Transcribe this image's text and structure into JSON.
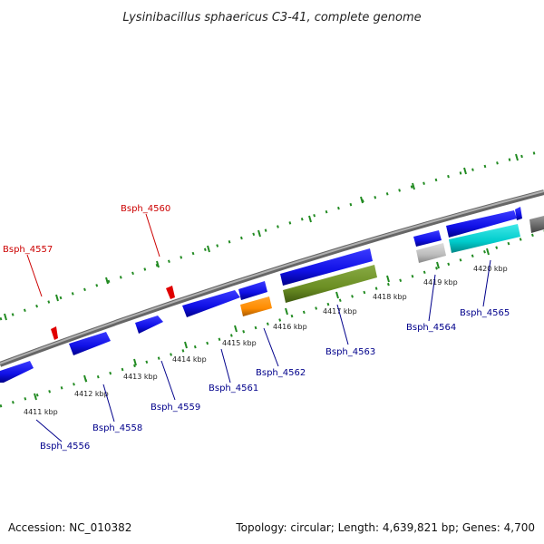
{
  "title": "Lysinibacillus sphaericus C3-41, complete genome",
  "footer": {
    "accession": "Accession: NC_010382",
    "summary": "Topology: circular; Length: 4,639,821 bp; Genes: 4,700"
  },
  "colors": {
    "forward_cds": "#1212e0",
    "reverse_label": "#cc0000",
    "forward_label": "#00008b",
    "tick_green": "#228b22",
    "backbone": "#888888",
    "orange_gene": "#ff8c00",
    "olive_gene": "#6b8e23",
    "cyan_gene": "#00cccc",
    "grey_gene": "#bbbbbb"
  },
  "tick_labels": [
    "4411 kbp",
    "4412 kbp",
    "4413 kbp",
    "4414 kbp",
    "4415 kbp",
    "4416 kbp",
    "4417 kbp",
    "4418 kbp",
    "4419 kbp",
    "4420 kbp"
  ],
  "genes": [
    {
      "name": "Bsph_4556",
      "strand": "forward",
      "color": "#00008b"
    },
    {
      "name": "Bsph_4557",
      "strand": "reverse",
      "color": "#cc0000"
    },
    {
      "name": "Bsph_4558",
      "strand": "forward",
      "color": "#00008b"
    },
    {
      "name": "Bsph_4559",
      "strand": "forward",
      "color": "#00008b"
    },
    {
      "name": "Bsph_4560",
      "strand": "reverse",
      "color": "#cc0000"
    },
    {
      "name": "Bsph_4561",
      "strand": "forward",
      "color": "#00008b"
    },
    {
      "name": "Bsph_4562",
      "strand": "forward",
      "color": "#00008b"
    },
    {
      "name": "Bsph_4563",
      "strand": "forward",
      "color": "#00008b"
    },
    {
      "name": "Bsph_4564",
      "strand": "forward",
      "color": "#00008b"
    },
    {
      "name": "Bsph_4565",
      "strand": "forward",
      "color": "#00008b"
    }
  ]
}
